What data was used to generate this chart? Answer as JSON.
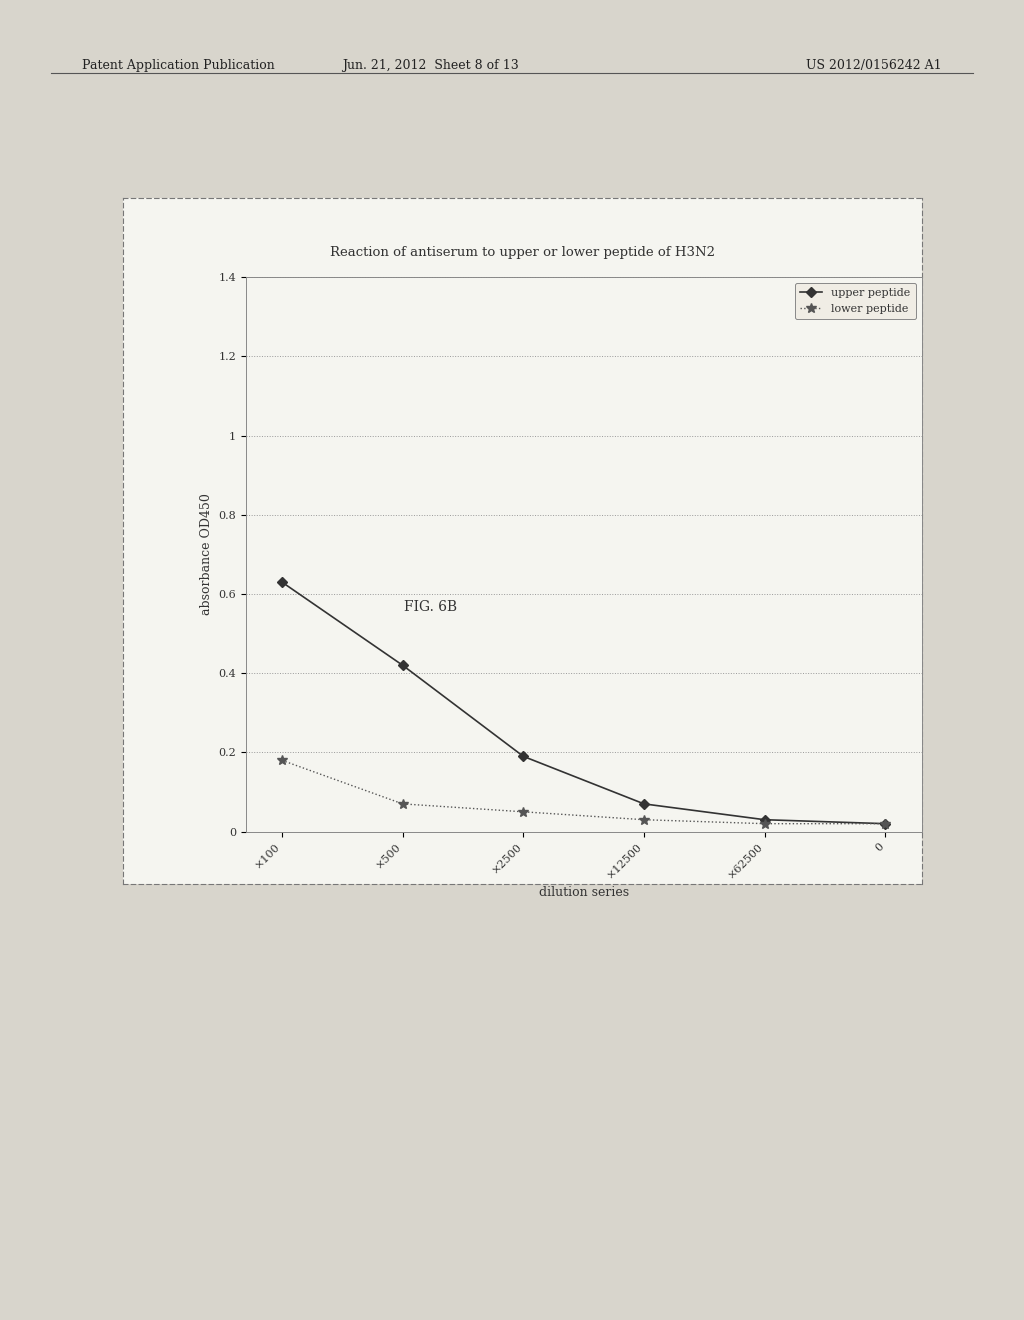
{
  "fig_label": "FIG. 6B",
  "chart_title": "Reaction of antiserum to upper or lower peptide of H3N2",
  "xlabel": "dilution series",
  "ylabel": "absorbance OD450",
  "xlabels": [
    "×100",
    "×500",
    "×2500",
    "×12500",
    "×62500",
    "0"
  ],
  "upper_peptide": [
    0.63,
    0.42,
    0.19,
    0.07,
    0.03,
    0.02
  ],
  "lower_peptide": [
    0.18,
    0.07,
    0.05,
    0.03,
    0.02,
    0.02
  ],
  "ylim": [
    0,
    1.4
  ],
  "yticks": [
    0,
    0.2,
    0.4,
    0.6,
    0.8,
    1.0,
    1.2,
    1.4
  ],
  "ytick_labels": [
    "0",
    "0.2",
    "0.4",
    "0.6",
    "0.8",
    "1",
    "1.2",
    "1.4"
  ],
  "upper_color": "#333333",
  "lower_color": "#555555",
  "bg_color": "#f5f5f0",
  "page_color": "#d8d5cc",
  "box_color": "#888888",
  "header_left": "Patent Application Publication",
  "header_mid": "Jun. 21, 2012  Sheet 8 of 13",
  "header_right": "US 2012/0156242 A1"
}
